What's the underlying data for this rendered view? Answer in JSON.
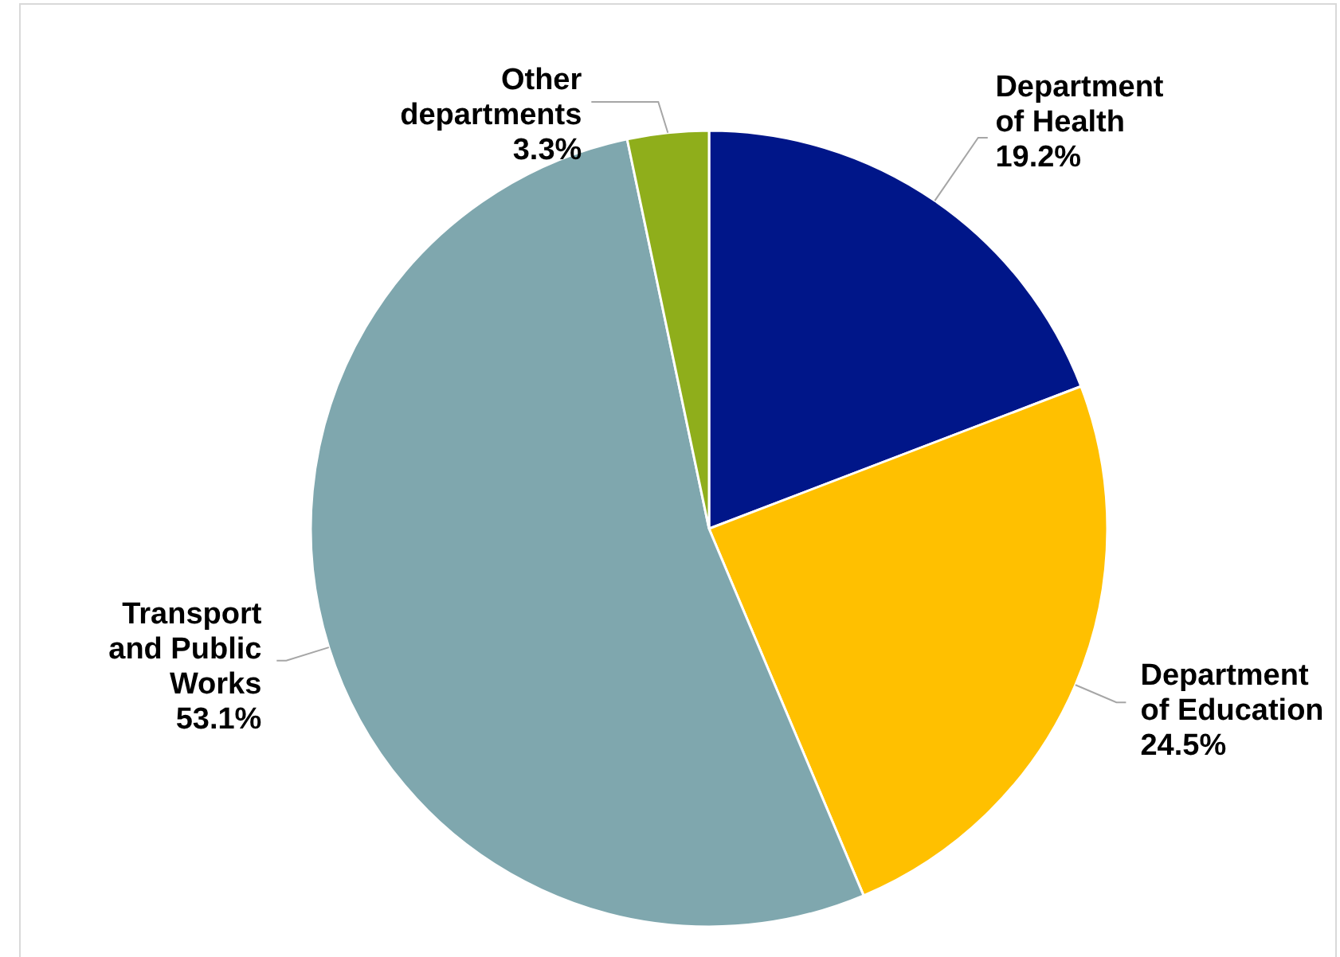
{
  "chart_data": {
    "type": "pie",
    "categories": [
      "Department of Health",
      "Department of Education",
      "Transport and Public Works",
      "Other departments"
    ],
    "values": [
      19.2,
      24.5,
      53.1,
      3.3
    ],
    "value_labels": [
      "19.2%",
      "24.5%",
      "53.1%",
      "3.3%"
    ],
    "colors": [
      "#001689",
      "#ffc000",
      "#7fa7ae",
      "#8fae1b"
    ]
  }
}
